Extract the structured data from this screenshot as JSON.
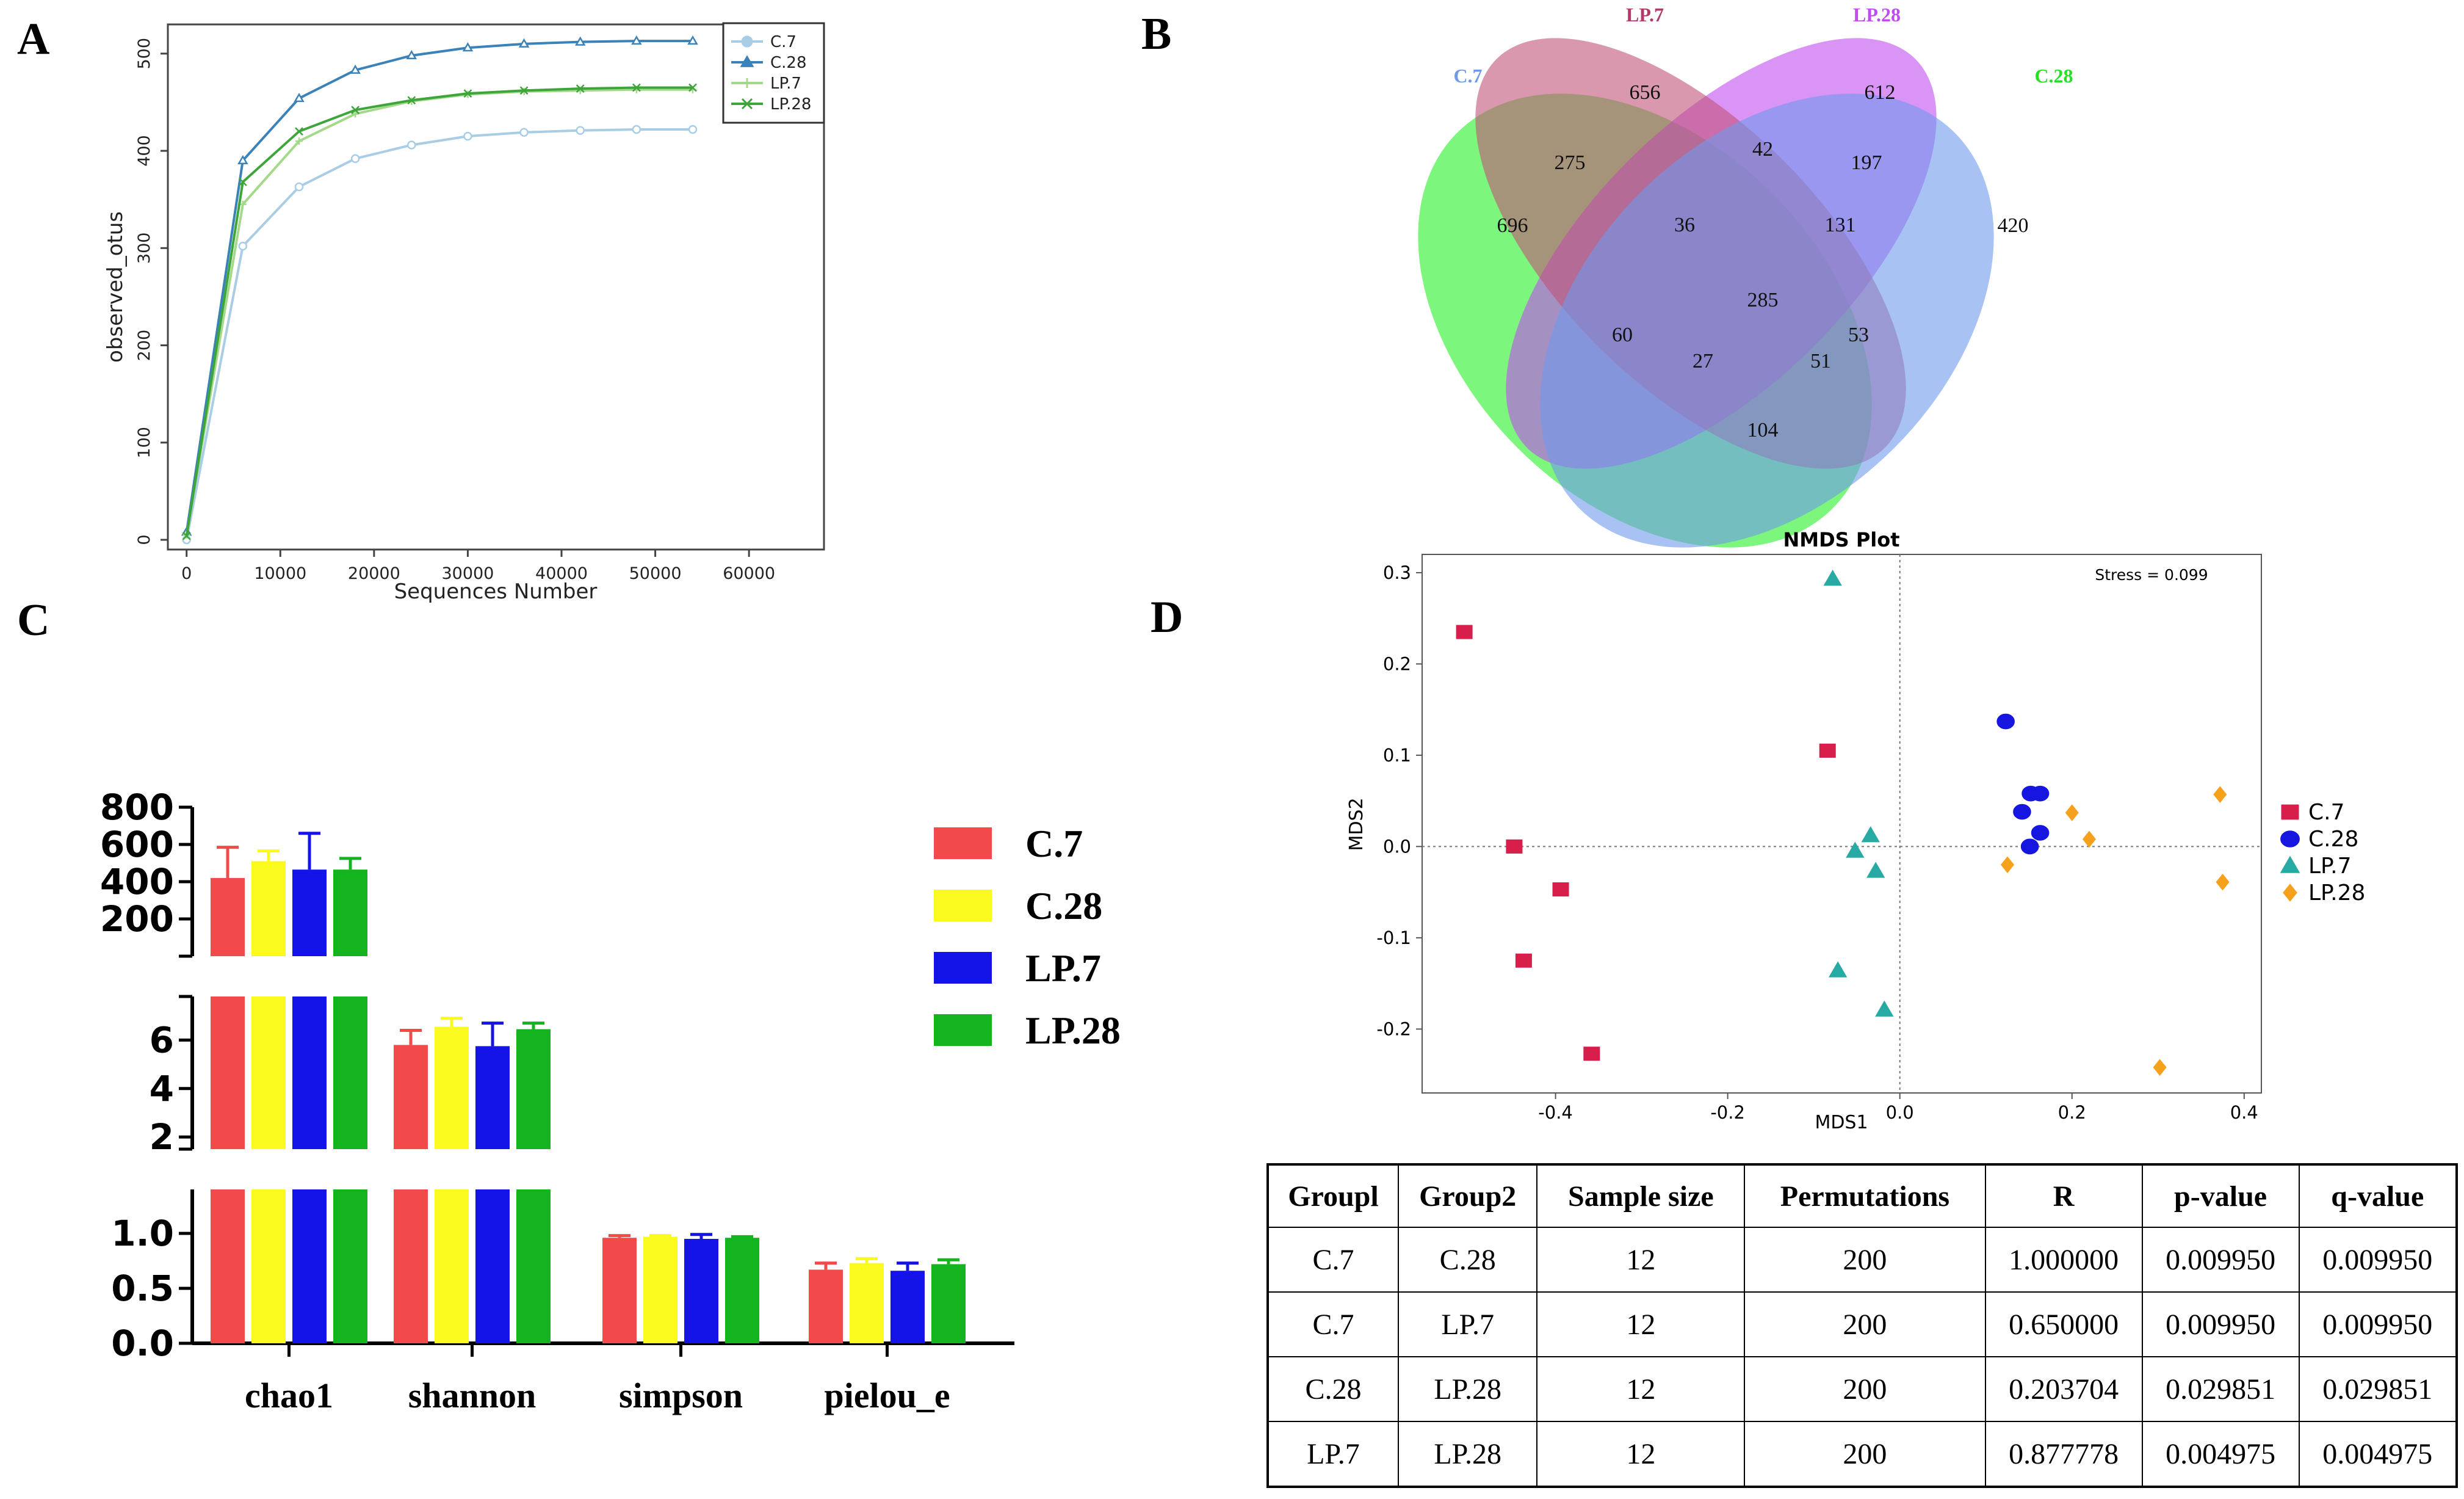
{
  "panel_labels": {
    "a": "A",
    "b": "B",
    "c": "C",
    "d": "D"
  },
  "colors": {
    "c7_line": "#a8cde4",
    "c28_line": "#3b82b8",
    "lp7_line": "#a4d98a",
    "lp28_line": "#3ea53a",
    "c7_bar": "#f24a4a",
    "c28_bar": "#fafa1e",
    "lp7_bar": "#1414e8",
    "lp28_bar": "#14b41e",
    "venn_c7": "#6f99ec",
    "venn_lp7": "#c05478",
    "venn_lp28": "#c04cf0",
    "venn_c28": "#26f026",
    "nmds_c7": "#d81e4a",
    "nmds_c28": "#1616e0",
    "nmds_lp7": "#28aaa4",
    "nmds_lp28": "#f5a11c"
  },
  "chart_data": [
    {
      "id": "rarefaction",
      "type": "line",
      "xlabel": "Sequences Number",
      "ylabel": "observed_otus",
      "xlim": [
        -2000,
        68000
      ],
      "ylim": [
        -10,
        530
      ],
      "xticks": [
        0,
        10000,
        20000,
        30000,
        40000,
        50000,
        60000
      ],
      "yticks": [
        0,
        100,
        200,
        300,
        400,
        500
      ],
      "legend_position": "top-right",
      "x": [
        0,
        6000,
        12000,
        18000,
        24000,
        30000,
        36000,
        42000,
        48000,
        54000
      ],
      "series": [
        {
          "name": "C.7",
          "marker": "circle",
          "values": [
            0,
            302,
            363,
            392,
            406,
            415,
            419,
            421,
            422,
            422
          ]
        },
        {
          "name": "C.28",
          "marker": "triangle",
          "values": [
            8,
            390,
            454,
            483,
            498,
            506,
            510,
            512,
            513,
            513
          ]
        },
        {
          "name": "LP.7",
          "marker": "plus",
          "values": [
            5,
            345,
            410,
            438,
            451,
            458,
            461,
            462,
            463,
            463
          ]
        },
        {
          "name": "LP.28",
          "marker": "x",
          "values": [
            4,
            368,
            420,
            442,
            452,
            459,
            462,
            464,
            465,
            465
          ]
        }
      ]
    },
    {
      "id": "venn",
      "type": "venn",
      "sets": [
        "C.7",
        "LP.7",
        "LP.28",
        "C.28"
      ],
      "regions": [
        {
          "sets": [
            "C.7"
          ],
          "value": 696
        },
        {
          "sets": [
            "LP.7"
          ],
          "value": 656
        },
        {
          "sets": [
            "LP.28"
          ],
          "value": 612
        },
        {
          "sets": [
            "C.28"
          ],
          "value": 420
        },
        {
          "sets": [
            "C.7",
            "LP.7"
          ],
          "value": 275
        },
        {
          "sets": [
            "LP.7",
            "LP.28"
          ],
          "value": 42
        },
        {
          "sets": [
            "LP.28",
            "C.28"
          ],
          "value": 197
        },
        {
          "sets": [
            "C.7",
            "LP.28"
          ],
          "value": 60
        },
        {
          "sets": [
            "LP.7",
            "C.28"
          ],
          "value": 53
        },
        {
          "sets": [
            "C.7",
            "C.28"
          ],
          "value": 104
        },
        {
          "sets": [
            "C.7",
            "LP.7",
            "LP.28"
          ],
          "value": 36
        },
        {
          "sets": [
            "LP.7",
            "LP.28",
            "C.28"
          ],
          "value": 131
        },
        {
          "sets": [
            "C.7",
            "LP.28",
            "C.28"
          ],
          "value": 27
        },
        {
          "sets": [
            "C.7",
            "LP.7",
            "C.28"
          ],
          "value": 51
        },
        {
          "sets": [
            "C.7",
            "LP.7",
            "LP.28",
            "C.28"
          ],
          "value": 285
        }
      ]
    },
    {
      "id": "alpha",
      "type": "bar",
      "categories": [
        "chao1",
        "shannon",
        "simpson",
        "pielou_e"
      ],
      "axis_segments": [
        {
          "range": [
            0,
            1.4
          ],
          "ticks": [
            0.0,
            0.5,
            1.0
          ],
          "labels": [
            "0.0",
            "0.5",
            "1.0"
          ]
        },
        {
          "range": [
            1.5,
            7.8
          ],
          "ticks": [
            2,
            4,
            6
          ],
          "labels": [
            "2",
            "4",
            "6"
          ]
        },
        {
          "range": [
            0,
            800
          ],
          "ticks": [
            200,
            400,
            600,
            800
          ],
          "labels": [
            "200",
            "400",
            "600",
            "800"
          ]
        }
      ],
      "series": [
        {
          "name": "C.7",
          "values": [
            420,
            5.8,
            0.96,
            0.67
          ],
          "errors": [
            165,
            0.6,
            0.02,
            0.06
          ]
        },
        {
          "name": "C.28",
          "values": [
            510,
            6.55,
            0.97,
            0.73
          ],
          "errors": [
            55,
            0.35,
            0.01,
            0.04
          ]
        },
        {
          "name": "LP.7",
          "values": [
            465,
            5.75,
            0.95,
            0.66
          ],
          "errors": [
            195,
            0.95,
            0.04,
            0.07
          ]
        },
        {
          "name": "LP.28",
          "values": [
            465,
            6.45,
            0.96,
            0.72
          ],
          "errors": [
            60,
            0.25,
            0.01,
            0.04
          ]
        }
      ],
      "legend_position": "right"
    },
    {
      "id": "nmds",
      "type": "scatter",
      "title": "NMDS Plot",
      "xlabel": "MDS1",
      "ylabel": "MDS2",
      "xlim": [
        -0.555,
        0.42
      ],
      "ylim": [
        -0.27,
        0.32
      ],
      "xticks": [
        -0.4,
        -0.2,
        0.0,
        0.2,
        0.4
      ],
      "xtick_labels": [
        "-0.4",
        "-0.2",
        "0.0",
        "0.2",
        "0.4"
      ],
      "yticks": [
        -0.2,
        -0.1,
        0.0,
        0.1,
        0.2,
        0.3
      ],
      "ytick_labels": [
        "-0.2",
        "-0.1",
        "0.0",
        "0.1",
        "0.2",
        "0.3"
      ],
      "annotation": "Stress = 0.099",
      "legend_position": "right",
      "series": [
        {
          "name": "C.7",
          "marker": "square",
          "points": [
            [
              -0.506,
              0.235
            ],
            [
              -0.448,
              0.0
            ],
            [
              -0.437,
              -0.125
            ],
            [
              -0.394,
              -0.047
            ],
            [
              -0.358,
              -0.227
            ],
            [
              -0.084,
              0.105
            ]
          ]
        },
        {
          "name": "C.28",
          "marker": "circle",
          "points": [
            [
              0.123,
              0.137
            ],
            [
              0.142,
              0.038
            ],
            [
              0.152,
              0.058
            ],
            [
              0.163,
              0.058
            ],
            [
              0.163,
              0.015
            ],
            [
              0.151,
              0.0
            ]
          ]
        },
        {
          "name": "LP.7",
          "marker": "triangle",
          "points": [
            [
              -0.078,
              0.293
            ],
            [
              -0.034,
              0.012
            ],
            [
              -0.052,
              -0.005
            ],
            [
              -0.028,
              -0.027
            ],
            [
              -0.072,
              -0.136
            ],
            [
              -0.018,
              -0.179
            ]
          ]
        },
        {
          "name": "LP.28",
          "marker": "diamond",
          "points": [
            [
              0.125,
              -0.02
            ],
            [
              0.2,
              0.037
            ],
            [
              0.22,
              0.008
            ],
            [
              0.372,
              0.057
            ],
            [
              0.375,
              -0.039
            ],
            [
              0.302,
              -0.242
            ]
          ]
        }
      ]
    }
  ],
  "table": {
    "headers": [
      "Groupl",
      "Group2",
      "Sample size",
      "Permutations",
      "R",
      "p-value",
      "q-value"
    ],
    "rows": [
      [
        "C.7",
        "C.28",
        "12",
        "200",
        "1.000000",
        "0.009950",
        "0.009950"
      ],
      [
        "C.7",
        "LP.7",
        "12",
        "200",
        "0.650000",
        "0.009950",
        "0.009950"
      ],
      [
        "C.28",
        "LP.28",
        "12",
        "200",
        "0.203704",
        "0.029851",
        "0.029851"
      ],
      [
        "LP.7",
        "LP.28",
        "12",
        "200",
        "0.877778",
        "0.004975",
        "0.004975"
      ]
    ]
  }
}
